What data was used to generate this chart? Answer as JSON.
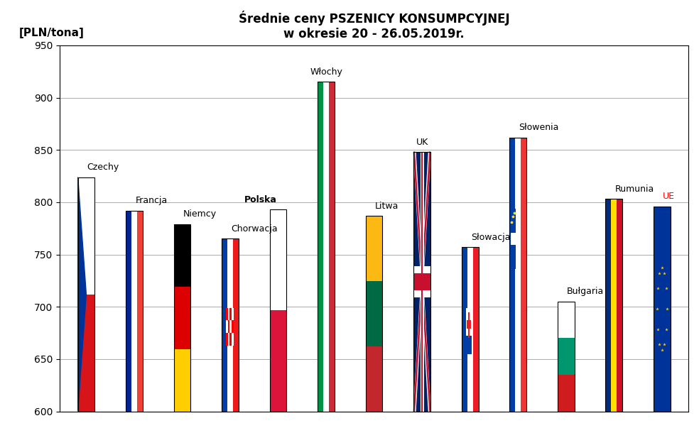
{
  "title_line1": "Średnie ceny PSZENICY KONSUMPCYJNEJ",
  "title_line2": "w okresie 20 - 26.05.2019r.",
  "ylabel": "[PLN/tona]",
  "ylim": [
    600,
    950
  ],
  "yticks": [
    600,
    650,
    700,
    750,
    800,
    850,
    900,
    950
  ],
  "countries": [
    "Czechy",
    "Francja",
    "Niemcy",
    "Chorwacja",
    "Polska",
    "Włochy",
    "Litwa",
    "UK",
    "Słowacja",
    "Słowenia",
    "Bułgaria",
    "Rumunia",
    "UE"
  ],
  "values": [
    824,
    792,
    779,
    765,
    793,
    915,
    787,
    848,
    757,
    862,
    705,
    803,
    796
  ],
  "label_bold": [
    false,
    false,
    false,
    false,
    true,
    false,
    false,
    false,
    false,
    false,
    false,
    false,
    false
  ],
  "label_color": [
    "black",
    "black",
    "black",
    "black",
    "black",
    "black",
    "black",
    "black",
    "black",
    "black",
    "black",
    "black",
    "red"
  ],
  "background_color": "#ffffff",
  "grid_color": "#aaaaaa"
}
